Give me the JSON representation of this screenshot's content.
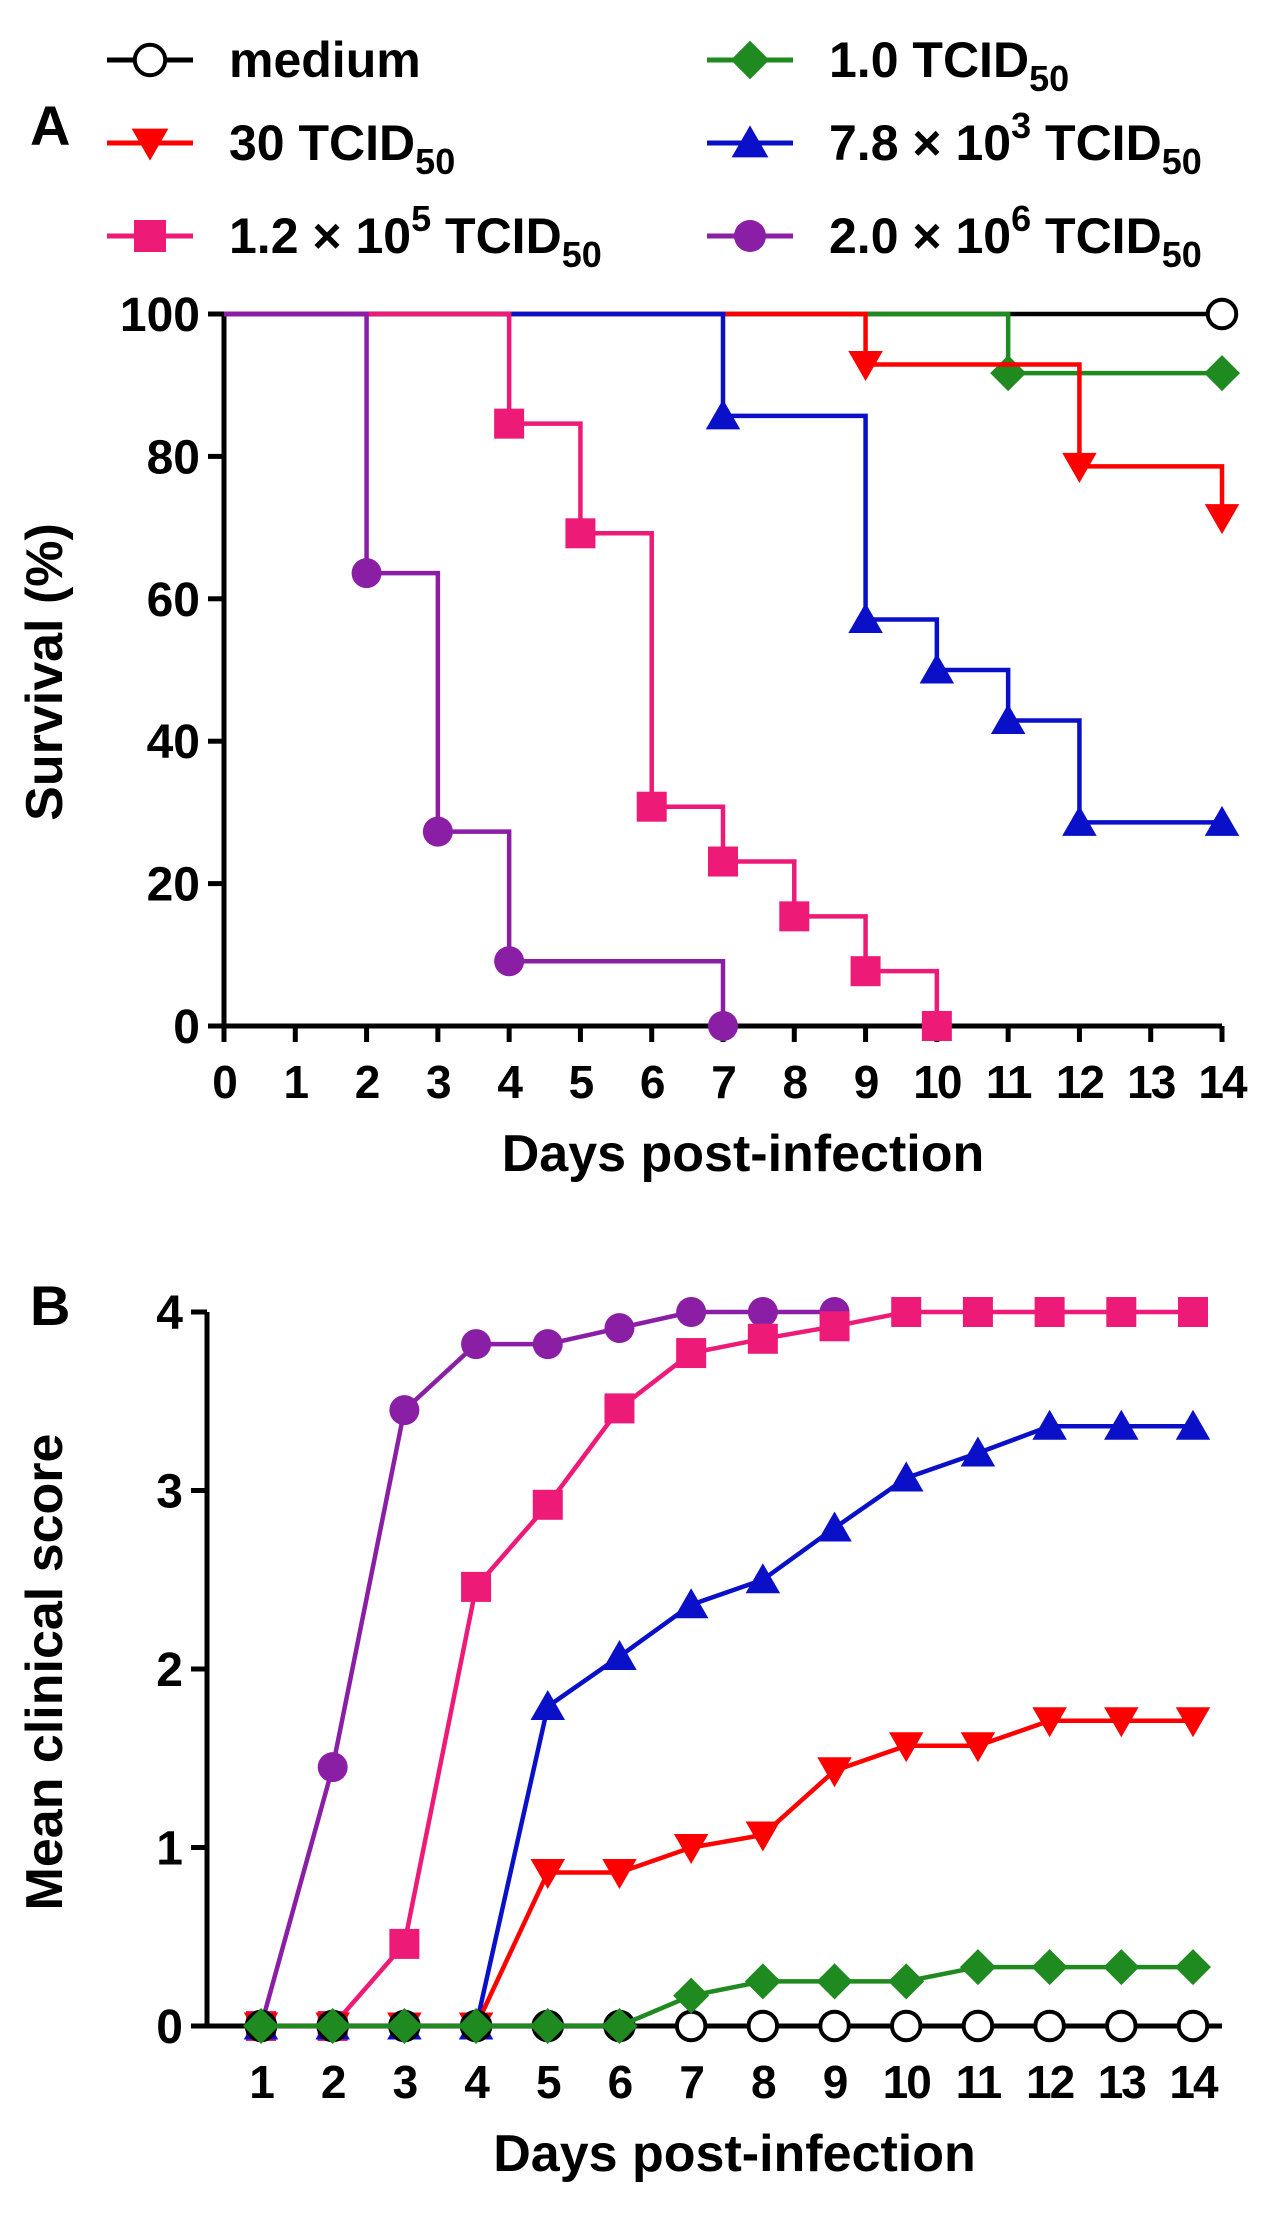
{
  "colors": {
    "medium": "#000000",
    "30": "#ff0000",
    "1.0": "#1f8a1f",
    "7.8e3": "#0a10c8",
    "1.2e5": "#ee1a78",
    "2.0e6": "#8a1fa6"
  },
  "legend": [
    {
      "key": "medium",
      "main": "medium",
      "sup": "",
      "rest": "",
      "sub": "",
      "marker": "circle-open"
    },
    {
      "key": "30",
      "main": "30 TCID",
      "sup": "",
      "rest": "",
      "sub": "50",
      "marker": "triangle-down"
    },
    {
      "key": "1.2e5",
      "main": "1.2 × 10",
      "sup": "5",
      "rest": " TCID",
      "sub": "50",
      "marker": "square"
    },
    {
      "key": "1.0",
      "main": "1.0 TCID",
      "sup": "",
      "rest": "",
      "sub": "50",
      "marker": "diamond"
    },
    {
      "key": "7.8e3",
      "main": "7.8 × 10",
      "sup": "3",
      "rest": " TCID",
      "sub": "50",
      "marker": "triangle-up"
    },
    {
      "key": "2.0e6",
      "main": "2.0 × 10",
      "sup": "6",
      "rest": " TCID",
      "sub": "50",
      "marker": "circle"
    }
  ],
  "chart_data": [
    {
      "panel": "A",
      "type": "line",
      "subtype": "kaplan-meier step",
      "xlabel": "Days post-infection",
      "ylabel": "Survival (%)",
      "xlim": [
        0,
        14
      ],
      "ylim": [
        0,
        100
      ],
      "xticks": [
        0,
        1,
        2,
        3,
        4,
        5,
        6,
        7,
        8,
        9,
        10,
        11,
        12,
        13,
        14
      ],
      "yticks": [
        0,
        20,
        40,
        60,
        80,
        100
      ],
      "series": [
        {
          "key": "medium",
          "points": [
            [
              14,
              100
            ]
          ]
        },
        {
          "key": "30",
          "points": [
            [
              9,
              92.9
            ],
            [
              12,
              78.6
            ],
            [
              14,
              71.4
            ]
          ]
        },
        {
          "key": "1.0",
          "points": [
            [
              11,
              91.7
            ],
            [
              14,
              91.7
            ]
          ]
        },
        {
          "key": "7.8e3",
          "points": [
            [
              7,
              85.7
            ],
            [
              9,
              57.1
            ],
            [
              10,
              50
            ],
            [
              11,
              42.9
            ],
            [
              12,
              28.6
            ],
            [
              14,
              28.6
            ]
          ]
        },
        {
          "key": "1.2e5",
          "points": [
            [
              4,
              84.6
            ],
            [
              5,
              69.2
            ],
            [
              6,
              30.8
            ],
            [
              7,
              23.1
            ],
            [
              8,
              15.4
            ],
            [
              9,
              7.7
            ],
            [
              10,
              0
            ]
          ]
        },
        {
          "key": "2.0e6",
          "points": [
            [
              2,
              63.6
            ],
            [
              3,
              27.3
            ],
            [
              4,
              9.1
            ],
            [
              7,
              0
            ]
          ]
        }
      ]
    },
    {
      "panel": "B",
      "type": "line",
      "xlabel": "Days post-infection",
      "ylabel": "Mean clinical score",
      "xlim": [
        1,
        14
      ],
      "ylim": [
        0,
        4
      ],
      "xticks": [
        1,
        2,
        3,
        4,
        5,
        6,
        7,
        8,
        9,
        10,
        11,
        12,
        13,
        14
      ],
      "yticks": [
        0,
        1,
        2,
        3,
        4
      ],
      "series": [
        {
          "key": "2.0e6",
          "x": [
            1,
            2,
            3,
            4,
            5,
            6,
            7,
            8,
            9
          ],
          "y": [
            0,
            1.45,
            3.45,
            3.82,
            3.82,
            3.91,
            4,
            4,
            4
          ]
        },
        {
          "key": "1.2e5",
          "x": [
            1,
            2,
            3,
            4,
            5,
            6,
            7,
            8,
            9,
            10,
            11,
            12,
            13,
            14
          ],
          "y": [
            0,
            0,
            0.46,
            2.46,
            2.92,
            3.46,
            3.77,
            3.85,
            3.92,
            4,
            4,
            4,
            4,
            4
          ]
        },
        {
          "key": "7.8e3",
          "x": [
            1,
            2,
            3,
            4,
            5,
            6,
            7,
            8,
            9,
            10,
            11,
            12,
            13,
            14
          ],
          "y": [
            0,
            0,
            0,
            0,
            1.79,
            2.07,
            2.36,
            2.5,
            2.79,
            3.07,
            3.21,
            3.36,
            3.36,
            3.36
          ]
        },
        {
          "key": "30",
          "x": [
            1,
            2,
            3,
            4,
            5,
            6,
            7,
            8,
            9,
            10,
            11,
            12,
            13,
            14
          ],
          "y": [
            0,
            0,
            0,
            0,
            0.86,
            0.86,
            1.0,
            1.07,
            1.43,
            1.57,
            1.57,
            1.71,
            1.71,
            1.71
          ]
        },
        {
          "key": "medium",
          "x": [
            1,
            2,
            3,
            4,
            5,
            6,
            7,
            8,
            9,
            10,
            11,
            12,
            13,
            14
          ],
          "y": [
            0,
            0,
            0,
            0,
            0,
            0,
            0,
            0,
            0,
            0,
            0,
            0,
            0,
            0
          ]
        },
        {
          "key": "1.0",
          "x": [
            1,
            2,
            3,
            4,
            5,
            6,
            7,
            8,
            9,
            10,
            11,
            12,
            13,
            14
          ],
          "y": [
            0,
            0,
            0,
            0,
            0,
            0,
            0.17,
            0.25,
            0.25,
            0.25,
            0.33,
            0.33,
            0.33,
            0.33
          ]
        }
      ]
    }
  ],
  "panel_labels": [
    "A",
    "B"
  ]
}
